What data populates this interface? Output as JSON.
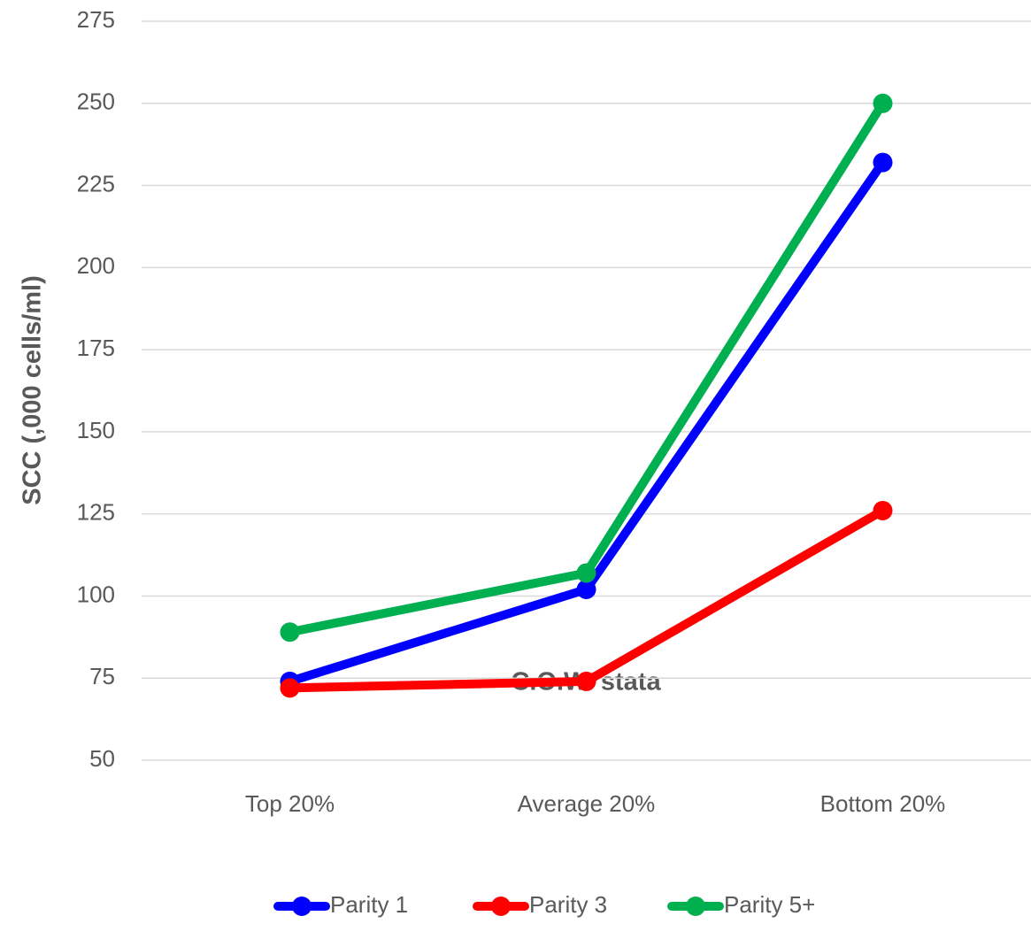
{
  "chart_data": {
    "type": "line",
    "x_label": "C.O.W. stata",
    "y_label": "SCC (,000 cells/ml)",
    "categories": [
      "Top 20%",
      "Average 20%",
      "Bottom 20%"
    ],
    "series": [
      {
        "name": "Parity 1",
        "color": "#0000ff",
        "values": [
          74,
          102,
          232
        ]
      },
      {
        "name": "Parity 3",
        "color": "#ff0000",
        "values": [
          72,
          74,
          126
        ]
      },
      {
        "name": "Parity 5+",
        "color": "#00b050",
        "values": [
          89,
          107,
          250
        ]
      }
    ],
    "ylim": [
      50,
      275
    ],
    "yticks": [
      50,
      75,
      100,
      125,
      150,
      175,
      200,
      225,
      250,
      275
    ],
    "grid": true,
    "legend": "bottom"
  }
}
